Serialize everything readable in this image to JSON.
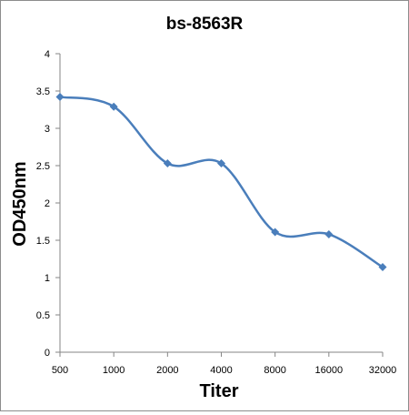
{
  "chart_data": {
    "type": "line",
    "title": "bs-8563R",
    "xlabel": "Titer",
    "ylabel": "OD450nm",
    "categories": [
      "500",
      "1000",
      "2000",
      "4000",
      "8000",
      "16000",
      "32000"
    ],
    "series": [
      {
        "values": [
          3.42,
          3.29,
          2.53,
          2.53,
          1.61,
          1.58,
          1.14
        ],
        "color": "#4a7ebb",
        "marker": "diamond",
        "smooth": true
      }
    ],
    "ylim": [
      0,
      4
    ],
    "yticks": [
      "0",
      "0.5",
      "1",
      "1.5",
      "2",
      "2.5",
      "3",
      "3.5",
      "4"
    ],
    "grid": false,
    "legend": "none",
    "axis_color": "#868686"
  }
}
